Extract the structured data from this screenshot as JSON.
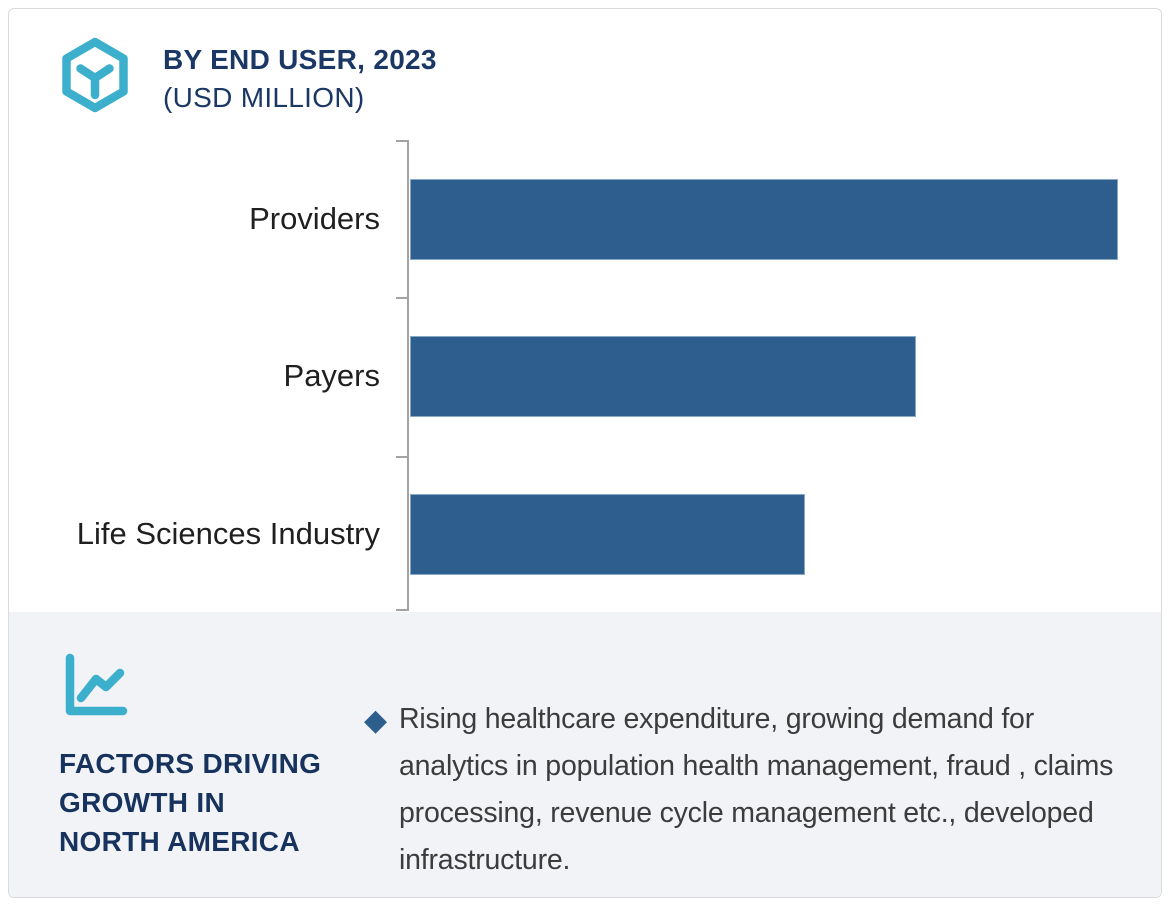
{
  "header": {
    "icon_name": "hex-cube-icon",
    "title_line1": "BY END USER, 2023",
    "title_line2": "(USD MILLION)"
  },
  "chart_data": {
    "type": "bar",
    "orientation": "horizontal",
    "title": "BY END USER, 2023 (USD MILLION)",
    "unit": "USD Million",
    "categories": [
      "Providers",
      "Payers",
      "Life Sciences Industry"
    ],
    "values_relative_pct_of_max": [
      100,
      71.5,
      55.8
    ],
    "value_labels_shown": false,
    "axis_numeric_labels_shown": false,
    "gridlines": false,
    "legend": "none",
    "bar_color": "#2d5e8e",
    "axis_color": "#a3a3a3"
  },
  "factors_panel": {
    "icon_name": "line-chart-icon",
    "heading_lines": [
      "FACTORS DRIVING",
      "GROWTH IN",
      "NORTH AMERICA"
    ],
    "bullet_marker": "◆",
    "bullet_text": "Rising healthcare expenditure, growing demand for analytics in population health management, fraud , claims processing, revenue cycle management etc., developed infrastructure."
  },
  "colors": {
    "accent_teal": "#3cafcc",
    "navy_title": "#1b3765",
    "factors_navy": "#17335d",
    "bar_blue": "#2d5e8e",
    "diamond_blue": "#2d5e8c",
    "panel_bg": "#f1f3f7",
    "body_text": "#3c3c3c",
    "category_label_text": "#1f1f1f",
    "card_border": "#d9dbde"
  }
}
